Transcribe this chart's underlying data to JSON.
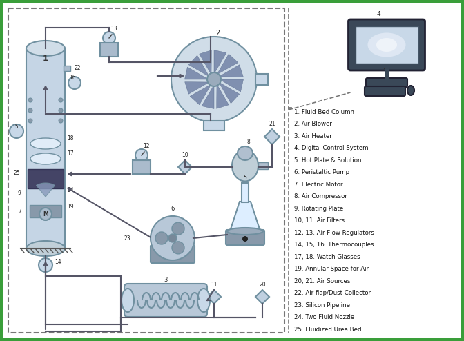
{
  "background_color": "#ffffff",
  "border_color": "#3a9e3a",
  "dashed_box_color": "#777777",
  "legend_items": [
    "1. Fluid Bed Column",
    "2. Air Blower",
    "3. Air Heater",
    "4. Digital Control System",
    "5. Hot Plate & Solution",
    "6. Peristaltic Pump",
    "7. Electric Motor",
    "8. Air Compressor",
    "9. Rotating Plate",
    "10, 11. Air Filters",
    "12, 13. Air Flow Regulators",
    "14, 15, 16. Thermocouples",
    "17, 18. Watch Glasses",
    "19. Annular Space for Air",
    "20, 21. Air Sources",
    "22. Air flap/Dust Collector",
    "23. Silicon Pipeline",
    "24. Two Fluid Nozzle",
    "25. Fluidized Urea Bed"
  ],
  "figsize": [
    6.72,
    4.94
  ],
  "dpi": 100,
  "col_color": "#b0c0d0",
  "col_edge": "#7090a0",
  "pipe_color": "#555566",
  "diamond_color": "#c0d0e0",
  "component_color": "#b0bfcf",
  "dark_color": "#6688aa"
}
